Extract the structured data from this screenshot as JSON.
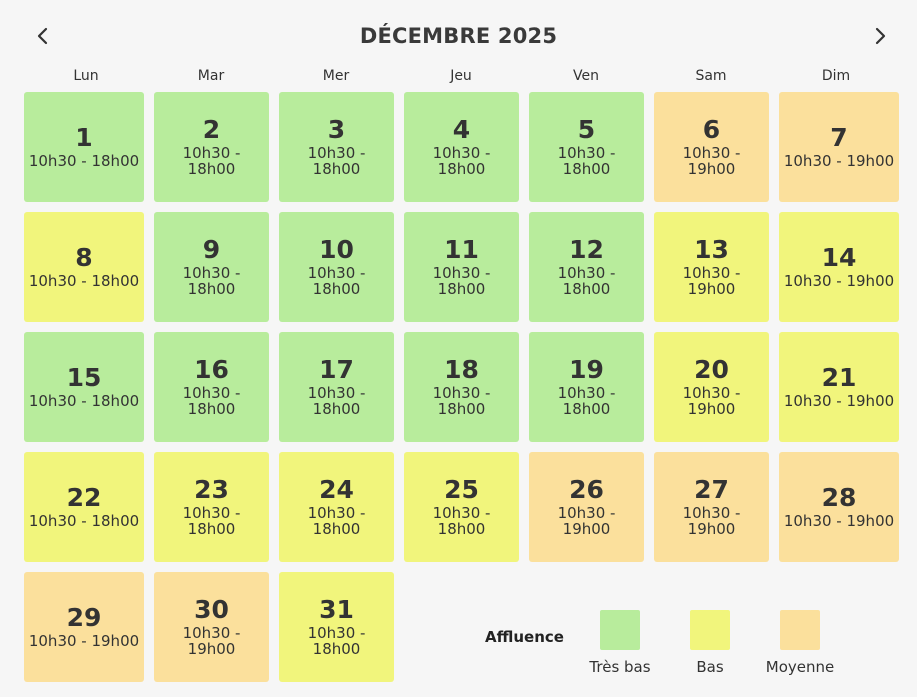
{
  "header": {
    "title": "DÉCEMBRE 2025",
    "prev_icon": "chevron-left-icon",
    "next_icon": "chevron-right-icon"
  },
  "weekdays": [
    "Lun",
    "Mar",
    "Mer",
    "Jeu",
    "Ven",
    "Sam",
    "Dim"
  ],
  "days": [
    {
      "day": "1",
      "hours": "10h30 - 18h00",
      "level": "tres-bas"
    },
    {
      "day": "2",
      "hours": "10h30 - 18h00",
      "level": "tres-bas"
    },
    {
      "day": "3",
      "hours": "10h30 - 18h00",
      "level": "tres-bas"
    },
    {
      "day": "4",
      "hours": "10h30 - 18h00",
      "level": "tres-bas"
    },
    {
      "day": "5",
      "hours": "10h30 - 18h00",
      "level": "tres-bas"
    },
    {
      "day": "6",
      "hours": "10h30 - 19h00",
      "level": "moyenne"
    },
    {
      "day": "7",
      "hours": "10h30 - 19h00",
      "level": "moyenne"
    },
    {
      "day": "8",
      "hours": "10h30 - 18h00",
      "level": "bas"
    },
    {
      "day": "9",
      "hours": "10h30 - 18h00",
      "level": "tres-bas"
    },
    {
      "day": "10",
      "hours": "10h30 - 18h00",
      "level": "tres-bas"
    },
    {
      "day": "11",
      "hours": "10h30 - 18h00",
      "level": "tres-bas"
    },
    {
      "day": "12",
      "hours": "10h30 - 18h00",
      "level": "tres-bas"
    },
    {
      "day": "13",
      "hours": "10h30 - 19h00",
      "level": "bas"
    },
    {
      "day": "14",
      "hours": "10h30 - 19h00",
      "level": "bas"
    },
    {
      "day": "15",
      "hours": "10h30 - 18h00",
      "level": "tres-bas"
    },
    {
      "day": "16",
      "hours": "10h30 - 18h00",
      "level": "tres-bas"
    },
    {
      "day": "17",
      "hours": "10h30 - 18h00",
      "level": "tres-bas"
    },
    {
      "day": "18",
      "hours": "10h30 - 18h00",
      "level": "tres-bas"
    },
    {
      "day": "19",
      "hours": "10h30 - 18h00",
      "level": "tres-bas"
    },
    {
      "day": "20",
      "hours": "10h30 - 19h00",
      "level": "bas"
    },
    {
      "day": "21",
      "hours": "10h30 - 19h00",
      "level": "bas"
    },
    {
      "day": "22",
      "hours": "10h30 - 18h00",
      "level": "bas"
    },
    {
      "day": "23",
      "hours": "10h30 - 18h00",
      "level": "bas"
    },
    {
      "day": "24",
      "hours": "10h30 - 18h00",
      "level": "bas"
    },
    {
      "day": "25",
      "hours": "10h30 - 18h00",
      "level": "bas"
    },
    {
      "day": "26",
      "hours": "10h30 - 19h00",
      "level": "moyenne"
    },
    {
      "day": "27",
      "hours": "10h30 - 19h00",
      "level": "moyenne"
    },
    {
      "day": "28",
      "hours": "10h30 - 19h00",
      "level": "moyenne"
    },
    {
      "day": "29",
      "hours": "10h30 - 19h00",
      "level": "moyenne"
    },
    {
      "day": "30",
      "hours": "10h30 - 19h00",
      "level": "moyenne"
    },
    {
      "day": "31",
      "hours": "10h30 - 18h00",
      "level": "bas"
    }
  ],
  "legend": {
    "title": "Affluence",
    "items": [
      {
        "label": "Très bas",
        "level": "tres-bas",
        "color": "#b8ec9c"
      },
      {
        "label": "Bas",
        "level": "bas",
        "color": "#f1f57c"
      },
      {
        "label": "Moyenne",
        "level": "moyenne",
        "color": "#fbe09c"
      }
    ]
  }
}
